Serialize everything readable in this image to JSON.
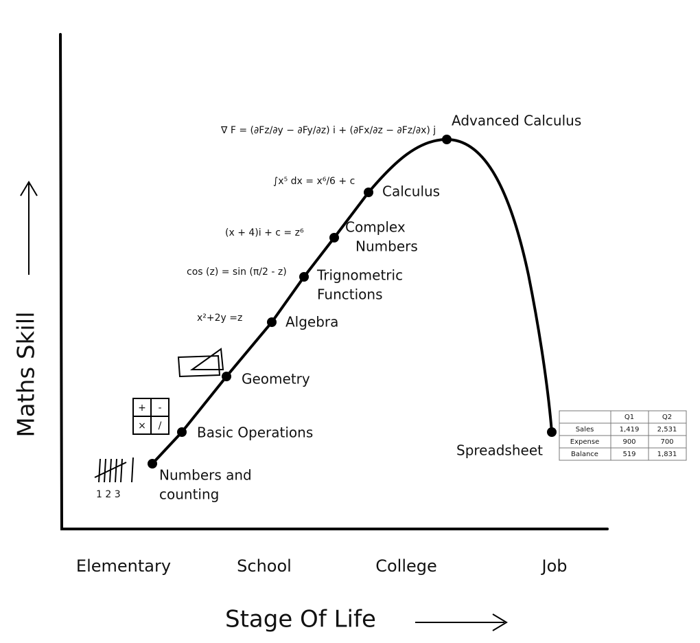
{
  "axes": {
    "y_label": "Maths Skill",
    "x_label": "Stage Of Life"
  },
  "stages": [
    "Elementary",
    "School",
    "College",
    "Job"
  ],
  "milestones": [
    {
      "lines": [
        "Numbers and",
        "counting"
      ]
    },
    {
      "lines": [
        "Basic Operations"
      ]
    },
    {
      "lines": [
        "Geometry"
      ]
    },
    {
      "lines": [
        "Algebra"
      ]
    },
    {
      "lines": [
        "Trignometric",
        "Functions"
      ]
    },
    {
      "lines": [
        "Complex",
        "Numbers"
      ]
    },
    {
      "lines": [
        "Calculus"
      ]
    },
    {
      "lines": [
        "Advanced Calculus"
      ]
    },
    {
      "lines": [
        "Spreadsheet"
      ]
    }
  ],
  "illustrations": {
    "tally_caption": "1 2 3",
    "operations": [
      "+",
      "-",
      "×",
      "/"
    ],
    "algebra": "x²+2y =z",
    "trig": "cos (z) = sin (π/2 - z)",
    "complex": "(x + 4)i + c = z⁶",
    "integral": "∫x⁵ dx = x⁶/6 + c",
    "curl": "∇ F = (∂Fz/∂y − ∂Fy/∂z) i + (∂Fx/∂z − ∂Fz/∂x) j"
  },
  "table": {
    "columns": [
      "Q1",
      "Q2"
    ],
    "rows": [
      {
        "label": "Sales",
        "cells": [
          "1,419",
          "2,531"
        ]
      },
      {
        "label": "Expense",
        "cells": [
          "900",
          "700"
        ]
      },
      {
        "label": "Balance",
        "cells": [
          "519",
          "1,831"
        ]
      }
    ]
  }
}
